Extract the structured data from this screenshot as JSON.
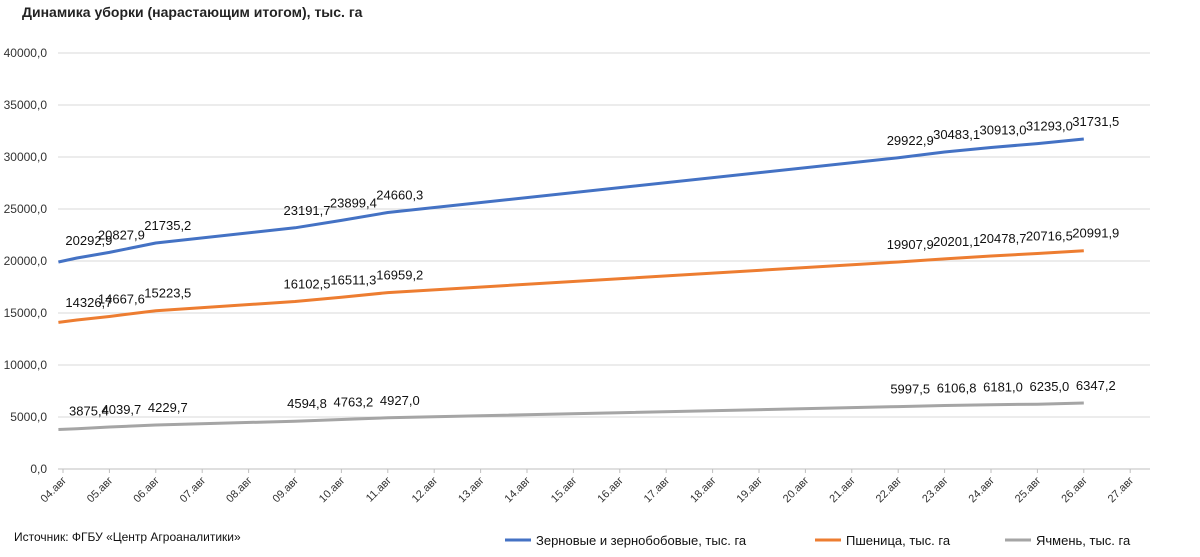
{
  "chart_data": {
    "type": "line",
    "title": "Динамика уборки (нарастающим итогом), тыс. га",
    "source": "Источник: ФГБУ «Центр Агроаналитики»",
    "categories": [
      "04.авг",
      "05.авг",
      "06.авг",
      "07.авг",
      "08.авг",
      "09.авг",
      "10.авг",
      "11.авг",
      "12.авг",
      "13.авг",
      "14.авг",
      "15.авг",
      "16.авг",
      "17.авг",
      "18.авг",
      "19.авг",
      "20.авг",
      "21.авг",
      "22.авг",
      "23.авг",
      "24.авг",
      "25.авг",
      "26.авг",
      "27.авг"
    ],
    "yticks": [
      "0,0",
      "5000,0",
      "10000,0",
      "15000,0",
      "20000,0",
      "25000,0",
      "30000,0",
      "35000,0",
      "40000,0"
    ],
    "ylim": [
      0,
      40000
    ],
    "grid": true,
    "legend_position": "bottom-right",
    "series": [
      {
        "name": "Зерновые и зернобобовые, тыс. га",
        "color": "#4472C4",
        "points": [
          [
            -0.1,
            19900
          ],
          [
            0.3,
            20292.9
          ],
          [
            1,
            20827.9
          ],
          [
            2,
            21735.2
          ],
          [
            5,
            23191.7
          ],
          [
            6,
            23899.4
          ],
          [
            7,
            24660.3
          ],
          [
            18,
            29922.9
          ],
          [
            19,
            30483.1
          ],
          [
            20,
            30913.0
          ],
          [
            21,
            31293.0
          ],
          [
            22,
            31731.5
          ]
        ],
        "labels": [
          {
            "x": 0.3,
            "y": 20292.9,
            "text": "20292,9"
          },
          {
            "x": 1,
            "y": 20827.9,
            "text": "20827,9"
          },
          {
            "x": 2,
            "y": 21735.2,
            "text": "21735,2"
          },
          {
            "x": 5,
            "y": 23191.7,
            "text": "23191,7"
          },
          {
            "x": 6,
            "y": 23899.4,
            "text": "23899,4"
          },
          {
            "x": 7,
            "y": 24660.3,
            "text": "24660,3"
          },
          {
            "x": 18,
            "y": 29922.9,
            "text": "29922,9"
          },
          {
            "x": 19,
            "y": 30483.1,
            "text": "30483,1"
          },
          {
            "x": 20,
            "y": 30913.0,
            "text": "30913,0"
          },
          {
            "x": 21,
            "y": 31293.0,
            "text": "31293,0"
          },
          {
            "x": 22,
            "y": 31731.5,
            "text": "31731,5"
          }
        ]
      },
      {
        "name": "Пшеница, тыс. га",
        "color": "#ED7D31",
        "points": [
          [
            -0.1,
            14100
          ],
          [
            0.3,
            14326.7
          ],
          [
            1,
            14667.6
          ],
          [
            2,
            15223.5
          ],
          [
            5,
            16102.5
          ],
          [
            6,
            16511.3
          ],
          [
            7,
            16959.2
          ],
          [
            18,
            19907.9
          ],
          [
            19,
            20201.1
          ],
          [
            20,
            20478.7
          ],
          [
            21,
            20716.5
          ],
          [
            22,
            20991.9
          ]
        ],
        "labels": [
          {
            "x": 0.3,
            "y": 14326.7,
            "text": "14326,7"
          },
          {
            "x": 1,
            "y": 14667.6,
            "text": "14667,6"
          },
          {
            "x": 2,
            "y": 15223.5,
            "text": "15223,5"
          },
          {
            "x": 5,
            "y": 16102.5,
            "text": "16102,5"
          },
          {
            "x": 6,
            "y": 16511.3,
            "text": "16511,3"
          },
          {
            "x": 7,
            "y": 16959.2,
            "text": "16959,2"
          },
          {
            "x": 18,
            "y": 19907.9,
            "text": "19907,9"
          },
          {
            "x": 19,
            "y": 20201.1,
            "text": "20201,1"
          },
          {
            "x": 20,
            "y": 20478.7,
            "text": "20478,7"
          },
          {
            "x": 21,
            "y": 20716.5,
            "text": "20716,5"
          },
          {
            "x": 22,
            "y": 20991.9,
            "text": "20991,9"
          }
        ]
      },
      {
        "name": "Ячмень, тыс. га",
        "color": "#A5A5A5",
        "points": [
          [
            -0.1,
            3800
          ],
          [
            0.3,
            3875.4
          ],
          [
            1,
            4039.7
          ],
          [
            2,
            4229.7
          ],
          [
            5,
            4594.8
          ],
          [
            6,
            4763.2
          ],
          [
            7,
            4927.0
          ],
          [
            18,
            5997.5
          ],
          [
            19,
            6106.8
          ],
          [
            20,
            6181.0
          ],
          [
            21,
            6235.0
          ],
          [
            22,
            6347.2
          ]
        ],
        "labels": [
          {
            "x": 0.3,
            "y": 3875.4,
            "text": "3875,4"
          },
          {
            "x": 1,
            "y": 4039.7,
            "text": "4039,7"
          },
          {
            "x": 2,
            "y": 4229.7,
            "text": "4229,7"
          },
          {
            "x": 5,
            "y": 4594.8,
            "text": "4594,8"
          },
          {
            "x": 6,
            "y": 4763.2,
            "text": "4763,2"
          },
          {
            "x": 7,
            "y": 4927.0,
            "text": "4927,0"
          },
          {
            "x": 18,
            "y": 5997.5,
            "text": "5997,5"
          },
          {
            "x": 19,
            "y": 6106.8,
            "text": "6106,8"
          },
          {
            "x": 20,
            "y": 6181.0,
            "text": "6181,0"
          },
          {
            "x": 21,
            "y": 6235.0,
            "text": "6235,0"
          },
          {
            "x": 22,
            "y": 6347.2,
            "text": "6347,2"
          }
        ]
      }
    ]
  }
}
